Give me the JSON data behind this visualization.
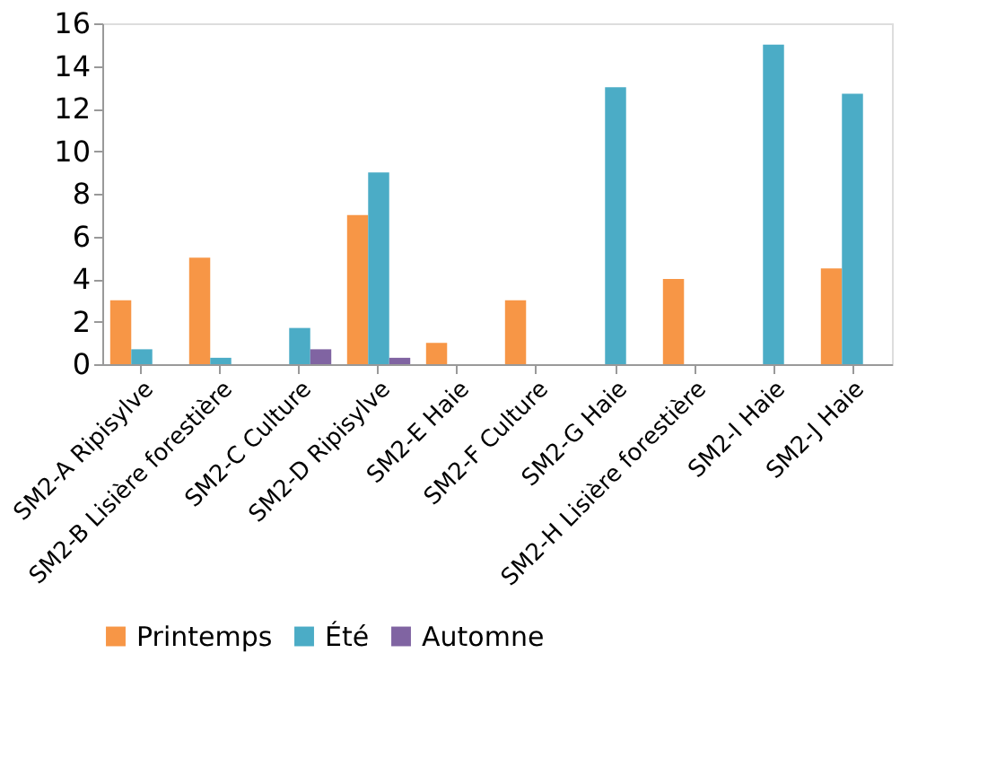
{
  "chart_data": {
    "type": "bar",
    "categories": [
      "SM2-A Ripisylve",
      "SM2-B Lisière forestière",
      "SM2-C Culture",
      "SM2-D Ripisylve",
      "SM2-E Haie",
      "SM2-F Culture",
      "SM2-G Haie",
      "SM2-H Lisière forestière",
      "SM2-I Haie",
      "SM2-J Haie"
    ],
    "series": [
      {
        "name": "Printemps",
        "color": "#f79646",
        "values": [
          3,
          5,
          null,
          7,
          1,
          3,
          null,
          4,
          null,
          4.5
        ]
      },
      {
        "name": "Été",
        "color": "#4bacc6",
        "values": [
          0.7,
          0.3,
          1.7,
          9,
          null,
          null,
          13,
          null,
          15,
          12.7
        ]
      },
      {
        "name": "Automne",
        "color": "#8064a2",
        "values": [
          null,
          null,
          0.7,
          0.3,
          null,
          null,
          null,
          null,
          null,
          null
        ]
      }
    ],
    "ylim": [
      0,
      16
    ],
    "yticks": [
      0,
      2,
      4,
      6,
      8,
      10,
      12,
      14,
      16
    ],
    "grid": false,
    "legend": "bottom"
  }
}
